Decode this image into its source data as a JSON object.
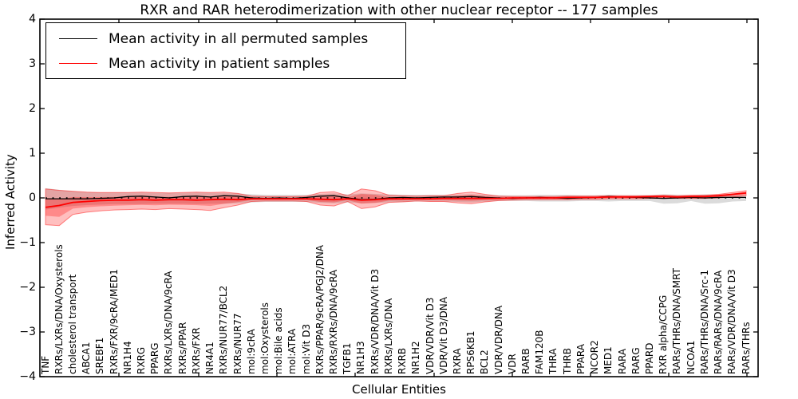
{
  "figure": {
    "background": "#ffffff",
    "text_color": "#000000"
  },
  "chart_data": {
    "type": "line",
    "title": "RXR and RAR heterodimerization with other nuclear receptor -- 177 samples",
    "xlabel": "Cellular Entities",
    "ylabel": "Inferred Activity",
    "ylim": [
      -4,
      4
    ],
    "ytick_values": [
      4,
      3,
      2,
      1,
      0,
      -1,
      -2,
      -3,
      -4
    ],
    "ytick_labels": [
      "4",
      "3",
      "2",
      "1",
      "0",
      "−1",
      "−2",
      "−3",
      "−4"
    ],
    "grid": false,
    "legend_position": "upper left",
    "zero_reference_line": {
      "style": "dotted",
      "color": "#000000",
      "y": 0
    },
    "categories": [
      "TNF",
      "RXRs/LXRs/DNA/Oxysterols",
      "cholesterol transport",
      "ABCA1",
      "SREBF1",
      "RXRs/FXR/9cRA/MED1",
      "NR1H4",
      "RXRG",
      "PPARG",
      "RXRs/LXRs/DNA/9cRA",
      "RXRs/PPAR",
      "RXRs/FXR",
      "NR4A1",
      "RXRs/NUR77/BCL2",
      "RXRs/NUR77",
      "mol:9cRA",
      "mol:Oxysterols",
      "mol:Bile acids",
      "mol:ATRA",
      "mol:Vit D3",
      "RXRs/PPAR/9cRA/PGJ2/DNA",
      "RXRs/RXRs/DNA/9cRA",
      "TGFB1",
      "NR1H3",
      "RXRs/VDR/DNA/Vit D3",
      "RXRs/LXRs/DNA",
      "RXRB",
      "NR1H2",
      "VDR/VDR/Vit D3",
      "VDR/Vit D3/DNA",
      "RXRA",
      "RPS6KB1",
      "BCL2",
      "VDR/VDR/DNA",
      "VDR",
      "RARB",
      "FAM120B",
      "THRA",
      "THRB",
      "PPARA",
      "NCOR2",
      "MED1",
      "RARA",
      "RARG",
      "PPARD",
      "RXR alpha/CCPG",
      "RARs/THRs/DNA/SMRT",
      "NCOA1",
      "RARs/THRs/DNA/Src-1",
      "RARs/RARs/DNA/9cRA",
      "RARs/VDR/DNA/Vit D3",
      "RARs/THRs"
    ],
    "series": [
      {
        "name": "Mean activity in all permuted samples",
        "color": "#000000",
        "band_color": "#999999",
        "values": [
          -0.02,
          -0.02,
          -0.02,
          -0.02,
          -0.01,
          0,
          0.03,
          0.04,
          0.02,
          0,
          0.03,
          0.04,
          0.02,
          0.05,
          0.04,
          0,
          -0.01,
          0,
          -0.01,
          0.01,
          0.04,
          0.05,
          0,
          -0.04,
          -0.03,
          0,
          0.01,
          0,
          0.01,
          0.02,
          0.02,
          0.03,
          0.01,
          0,
          -0.01,
          0,
          0.01,
          0,
          -0.01,
          0,
          0.01,
          0.03,
          0.02,
          0.01,
          0,
          -0.01,
          0,
          0.01,
          0,
          0.01,
          0.01,
          0.01
        ],
        "band_upper": [
          0.22,
          0.18,
          0.15,
          0.13,
          0.12,
          0.12,
          0.12,
          0.12,
          0.11,
          0.11,
          0.11,
          0.12,
          0.11,
          0.11,
          0.1,
          0.08,
          0.07,
          0.07,
          0.07,
          0.07,
          0.09,
          0.1,
          0.08,
          0.1,
          0.09,
          0.08,
          0.07,
          0.07,
          0.07,
          0.07,
          0.07,
          0.08,
          0.07,
          0.06,
          0.06,
          0.06,
          0.07,
          0.07,
          0.07,
          0.06,
          0.06,
          0.07,
          0.06,
          0.06,
          0.06,
          0.08,
          0.07,
          0.06,
          0.08,
          0.07,
          0.06,
          0.06
        ],
        "band_lower": [
          -0.26,
          -0.22,
          -0.18,
          -0.16,
          -0.15,
          -0.14,
          -0.14,
          -0.14,
          -0.13,
          -0.13,
          -0.13,
          -0.14,
          -0.13,
          -0.13,
          -0.12,
          -0.1,
          -0.09,
          -0.09,
          -0.09,
          -0.09,
          -0.11,
          -0.12,
          -0.1,
          -0.12,
          -0.11,
          -0.1,
          -0.09,
          -0.08,
          -0.08,
          -0.08,
          -0.09,
          -0.1,
          -0.08,
          -0.07,
          -0.07,
          -0.07,
          -0.08,
          -0.08,
          -0.08,
          -0.07,
          -0.07,
          -0.08,
          -0.07,
          -0.07,
          -0.07,
          -0.13,
          -0.12,
          -0.07,
          -0.13,
          -0.12,
          -0.08,
          -0.07
        ]
      },
      {
        "name": "Mean activity in patient samples",
        "color": "#ff0000",
        "band_color": "#ff0000",
        "values": [
          -0.21,
          -0.17,
          -0.1,
          -0.08,
          -0.06,
          -0.05,
          -0.05,
          -0.04,
          -0.05,
          -0.04,
          -0.04,
          -0.05,
          -0.04,
          -0.03,
          -0.04,
          -0.02,
          -0.02,
          -0.02,
          -0.02,
          -0.02,
          -0.03,
          -0.04,
          -0.02,
          -0.05,
          -0.04,
          -0.02,
          -0.02,
          -0.02,
          -0.02,
          -0.01,
          -0.01,
          -0.01,
          -0.01,
          -0.01,
          0,
          0,
          0,
          0,
          0.01,
          0.01,
          0.01,
          0.02,
          0.02,
          0.02,
          0.03,
          0.03,
          0.02,
          0.03,
          0.03,
          0.05,
          0.08,
          0.11
        ],
        "band_upper": [
          0.2,
          0.17,
          0.15,
          0.13,
          0.12,
          0.12,
          0.12,
          0.13,
          0.12,
          0.11,
          0.12,
          0.13,
          0.12,
          0.13,
          0.1,
          0.04,
          0.03,
          0.03,
          0.03,
          0.04,
          0.12,
          0.14,
          0.05,
          0.2,
          0.16,
          0.06,
          0.05,
          0.04,
          0.05,
          0.05,
          0.1,
          0.13,
          0.08,
          0.04,
          0.03,
          0.03,
          0.03,
          0.03,
          0.04,
          0.04,
          0.04,
          0.05,
          0.05,
          0.05,
          0.05,
          0.06,
          0.05,
          0.06,
          0.06,
          0.08,
          0.12,
          0.16
        ],
        "band_lower": [
          -0.6,
          -0.62,
          -0.37,
          -0.32,
          -0.29,
          -0.27,
          -0.26,
          -0.25,
          -0.26,
          -0.24,
          -0.25,
          -0.26,
          -0.28,
          -0.22,
          -0.16,
          -0.08,
          -0.07,
          -0.07,
          -0.07,
          -0.08,
          -0.16,
          -0.18,
          -0.08,
          -0.24,
          -0.2,
          -0.1,
          -0.09,
          -0.07,
          -0.08,
          -0.08,
          -0.11,
          -0.13,
          -0.09,
          -0.06,
          -0.05,
          -0.04,
          -0.04,
          -0.04,
          -0.04,
          -0.03,
          -0.03,
          -0.02,
          -0.02,
          -0.02,
          -0.01,
          -0.01,
          -0.01,
          -0.01,
          -0.01,
          0,
          0.02,
          0.05
        ]
      }
    ]
  }
}
